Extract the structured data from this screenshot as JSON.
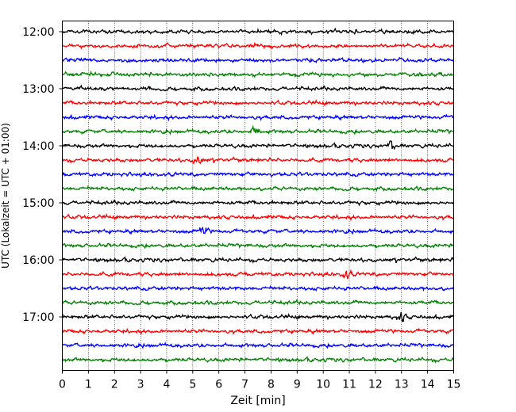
{
  "chart_data": {
    "type": "line",
    "title": "",
    "xlabel": "Zeit  [min]",
    "ylabel": "UTC (Lokalzeit = UTC + 01:00)",
    "xlim": [
      0,
      15
    ],
    "x_ticks": [
      "0",
      "1",
      "2",
      "3",
      "4",
      "5",
      "6",
      "7",
      "8",
      "9",
      "10",
      "11",
      "12",
      "13",
      "14",
      "15"
    ],
    "y_ticks": [
      "12:00",
      "13:00",
      "14:00",
      "15:00",
      "16:00",
      "17:00"
    ],
    "grid": "vertical dotted lines at each minute",
    "trace_interval_minutes": 15,
    "trace_start_times": [
      "12:00",
      "12:15",
      "12:30",
      "12:45",
      "13:00",
      "13:15",
      "13:30",
      "13:45",
      "14:00",
      "14:15",
      "14:30",
      "14:45",
      "15:00",
      "15:15",
      "15:30",
      "15:45",
      "16:00",
      "16:15",
      "16:30",
      "16:45",
      "17:00",
      "17:15",
      "17:30",
      "17:45"
    ],
    "colors": [
      "#000000",
      "#ff0000",
      "#0000ff",
      "#008000"
    ],
    "events": [
      {
        "trace": 9,
        "x_min": 5.2
      },
      {
        "trace": 14,
        "x_min": 5.4
      },
      {
        "trace": 17,
        "x_min": 10.9
      },
      {
        "trace": 8,
        "x_min": 12.6
      },
      {
        "trace": 7,
        "x_min": 7.4
      },
      {
        "trace": 20,
        "x_min": 13.0
      }
    ]
  }
}
